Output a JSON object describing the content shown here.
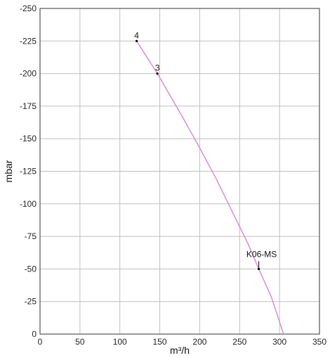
{
  "chart_data": {
    "type": "line",
    "xlabel": "m³/h",
    "ylabel": "mbar",
    "xlim": [
      0,
      350
    ],
    "ylim": [
      0,
      -250
    ],
    "x_ticks": [
      "0",
      "50",
      "100",
      "150",
      "200",
      "250",
      "300",
      "350"
    ],
    "y_ticks": [
      "0",
      "-25",
      "-50",
      "-75",
      "-100",
      "-125",
      "-150",
      "-175",
      "-200",
      "-225",
      "-250"
    ],
    "grid": true,
    "series": [
      {
        "color": "#d98bd6",
        "x": [
          121,
          147,
          180,
          200,
          220,
          240,
          260,
          274,
          290,
          305
        ],
        "y": [
          -225,
          -200,
          -165,
          -143,
          -120,
          -95,
          -70,
          -50,
          -28,
          0
        ]
      }
    ],
    "annotations": [
      {
        "label": "4",
        "x": 121,
        "y": -225
      },
      {
        "label": "3",
        "x": 147,
        "y": -200
      },
      {
        "label": "K06-MS",
        "x": 274,
        "y": -50
      }
    ]
  }
}
